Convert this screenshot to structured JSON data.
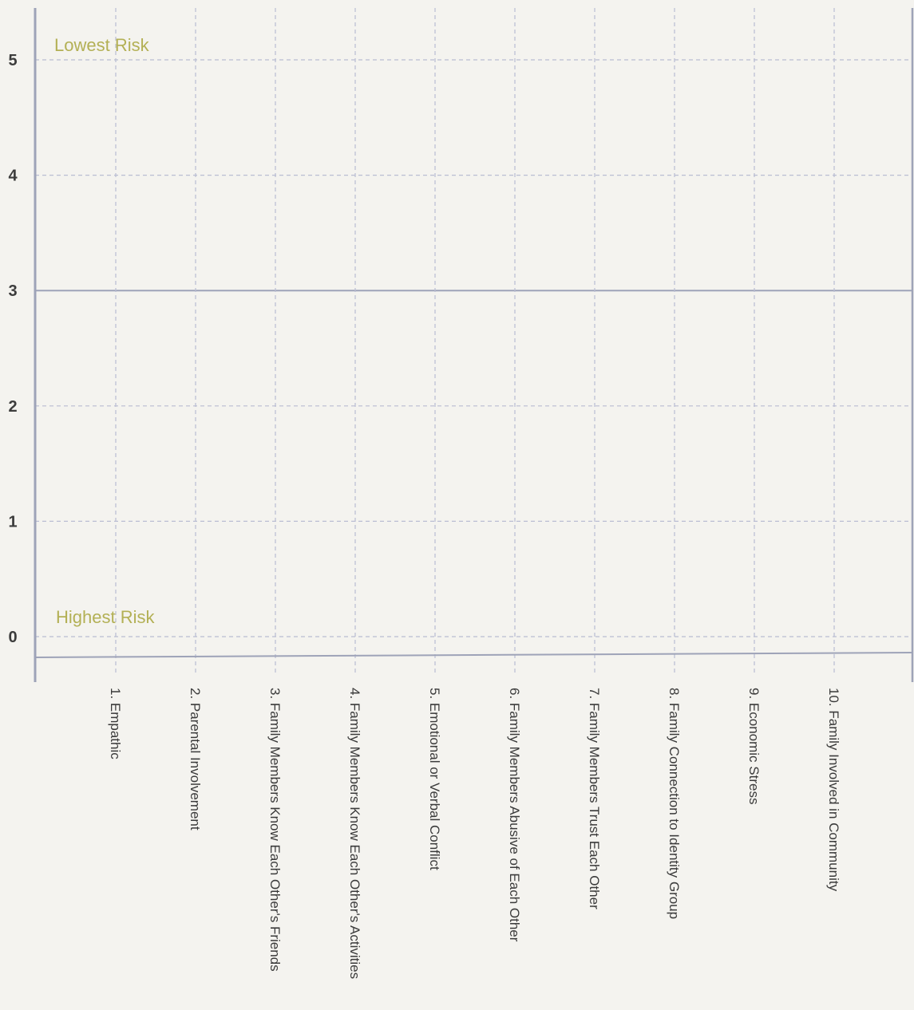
{
  "chart_data": {
    "type": "line",
    "title": "",
    "xlabel": "",
    "ylabel": "",
    "categories": [
      "1. Empathic",
      "2. Parental Involvement",
      "3. Family Members Know Each Other's Friends",
      "4. Family Members Know Each Other's Activities",
      "5. Emotional or Verbal Conflict",
      "6. Family Members Abusive of Each Other",
      "7. Family Members Trust Each Other",
      "8. Family Connection to Identity Group",
      "9. Economic Stress",
      "10. Family Involved in Community"
    ],
    "yticks": [
      "0",
      "1",
      "2",
      "3",
      "4",
      "5"
    ],
    "ylim": [
      0,
      5
    ],
    "grid": true,
    "series": [],
    "annotations": {
      "top": "Lowest Risk",
      "bottom": "Highest Risk"
    },
    "colors": {
      "grid": "#b9bdd2",
      "axis": "#9ea3b8",
      "annotation": "#b3b055",
      "background": "#f4f3ef"
    }
  }
}
